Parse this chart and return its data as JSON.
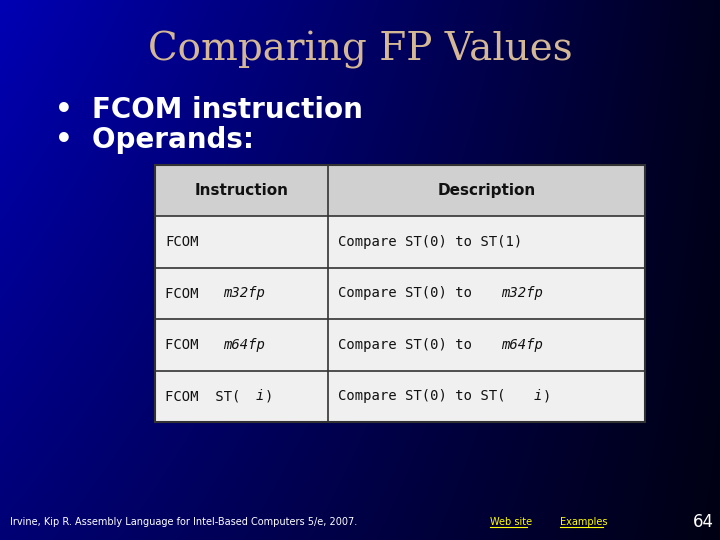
{
  "title": "Comparing FP Values",
  "title_color": "#D4B896",
  "title_fontsize": 28,
  "bullets": [
    "FCOM instruction",
    "Operands:"
  ],
  "bullet_color": "#FFFFFF",
  "bullet_fontsize": 20,
  "bg_color_left": "#0000CC",
  "bg_color_right": "#000033",
  "table_header": [
    "Instruction",
    "Description"
  ],
  "table_rows": [
    [
      "FCOM",
      "Compare ST(0) to ST(1)"
    ],
    [
      "FCOM  m32fp",
      "Compare ST(0) to  m32fp"
    ],
    [
      "FCOM  m64fp",
      "Compare ST(0) to  m64fp"
    ],
    [
      "FCOM  ST(i)",
      "Compare ST(0) to  ST(i)"
    ]
  ],
  "footer_left": "Irvine, Kip R. Assembly Language for Intel-Based Computers 5/e, 2007.",
  "footer_links": [
    "Web site",
    "Examples"
  ],
  "footer_page": "64",
  "footer_color": "#FFFFFF",
  "footer_link_color": "#FFFF00",
  "table_header_bg": "#D0D0D0",
  "table_row_bg": "#F0F0F0",
  "table_border_color": "#333333"
}
